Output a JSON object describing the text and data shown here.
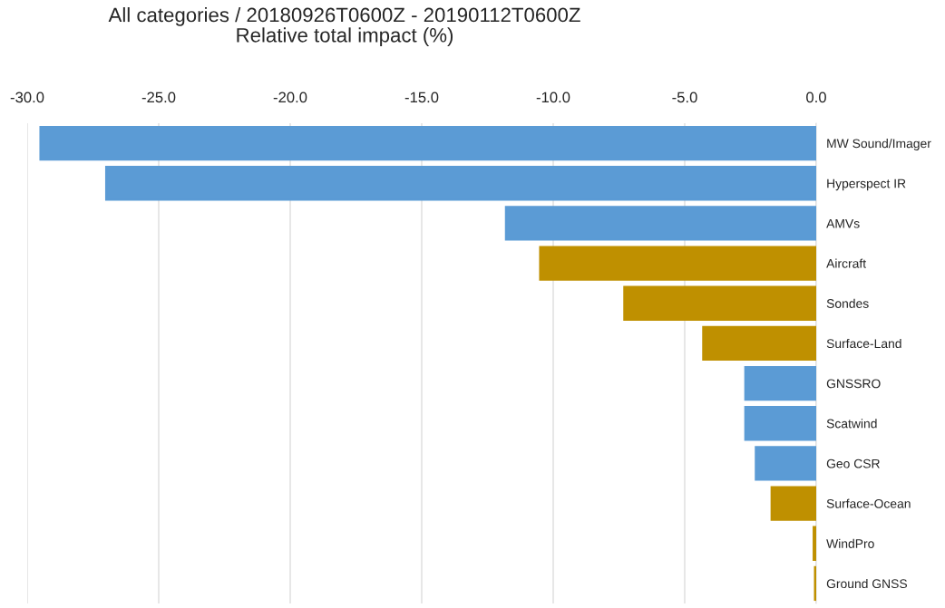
{
  "chart_data": {
    "type": "bar",
    "orientation": "horizontal",
    "title": "All categories / 20180926T0600Z - 20190112T0600Z\nRelative total impact (%)",
    "categories": [
      "MW Sound/Imager",
      "Hyperspect IR",
      "AMVs",
      "Aircraft",
      "Sondes",
      "Surface-Land",
      "GNSSRO",
      "Scatwind",
      "Geo CSR",
      "Surface-Ocean",
      "WindPro",
      "Ground GNSS"
    ],
    "values": [
      -29.5,
      -27.0,
      -11.8,
      -10.5,
      -7.3,
      -4.3,
      -2.7,
      -2.7,
      -2.3,
      -1.7,
      -0.1,
      -0.05
    ],
    "colors": [
      "#5b9bd5",
      "#5b9bd5",
      "#5b9bd5",
      "#bf9000",
      "#bf9000",
      "#bf9000",
      "#5b9bd5",
      "#5b9bd5",
      "#5b9bd5",
      "#bf9000",
      "#bf9000",
      "#bf9000"
    ],
    "xlim": [
      -30.0,
      0.0
    ],
    "xticks": [
      {
        "value": -30,
        "label": "-30.0"
      },
      {
        "value": -25,
        "label": "-25.0"
      },
      {
        "value": -20,
        "label": "-20.0"
      },
      {
        "value": -15,
        "label": "-15.0"
      },
      {
        "value": -10,
        "label": "-10.0"
      },
      {
        "value": -5,
        "label": "-5.0"
      },
      {
        "value": 0,
        "label": "0.0"
      }
    ],
    "grid": "x"
  }
}
